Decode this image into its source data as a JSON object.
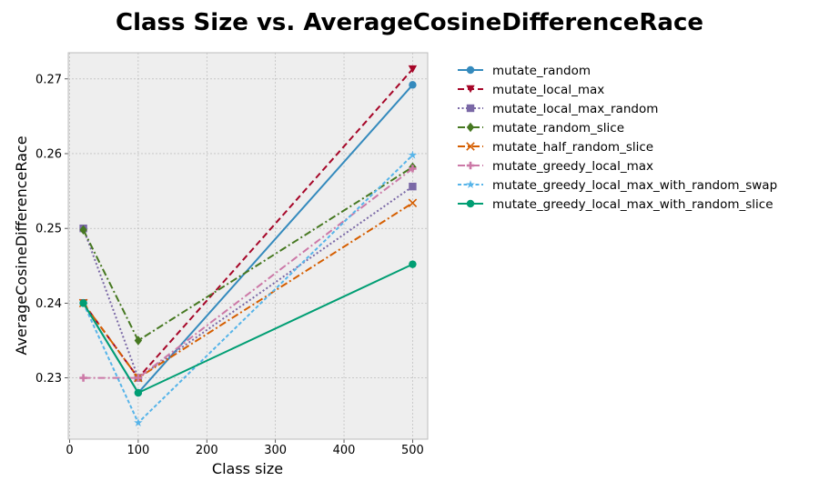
{
  "chart_data": {
    "type": "line",
    "title": "Class Size vs. AverageCosineDifferenceRace",
    "xlabel": "Class size",
    "ylabel": "AverageCosineDifferenceRace",
    "x": [
      20,
      100,
      500
    ],
    "xlim": [
      -2,
      522
    ],
    "ylim": [
      0.2218,
      0.2735
    ],
    "xticks": [
      "0",
      "100",
      "200",
      "300",
      "400",
      "500"
    ],
    "xtick_values": [
      0,
      100,
      200,
      300,
      400,
      500
    ],
    "yticks": [
      "0.23",
      "0.24",
      "0.25",
      "0.26",
      "0.27"
    ],
    "ytick_values": [
      0.23,
      0.24,
      0.25,
      0.26,
      0.27
    ],
    "grid": true,
    "legend_position": "outside-right",
    "series": [
      {
        "name": "mutate_random",
        "values": [
          0.24,
          0.228,
          0.2692
        ],
        "color": "#348ABD",
        "dash": "solid",
        "marker": "circle"
      },
      {
        "name": "mutate_local_max",
        "values": [
          0.24,
          0.23,
          0.2713
        ],
        "color": "#A60628",
        "dash": "dashed",
        "marker": "triangle-down"
      },
      {
        "name": "mutate_local_max_random",
        "values": [
          0.25,
          0.23,
          0.2556
        ],
        "color": "#7A68A6",
        "dash": "dotted",
        "marker": "square"
      },
      {
        "name": "mutate_random_slice",
        "values": [
          0.2498,
          0.235,
          0.2582
        ],
        "color": "#467821",
        "dash": "dashdot",
        "marker": "diamond"
      },
      {
        "name": "mutate_half_random_slice",
        "values": [
          0.24,
          0.23,
          0.2534
        ],
        "color": "#D55E00",
        "dash": "dashdot",
        "marker": "x"
      },
      {
        "name": "mutate_greedy_local_max",
        "values": [
          0.23,
          0.23,
          0.258
        ],
        "color": "#CC79A7",
        "dash": "dashdot",
        "marker": "plus"
      },
      {
        "name": "mutate_greedy_local_max_with_random_swap",
        "values": [
          0.24,
          0.224,
          0.2598
        ],
        "color": "#56B4E9",
        "dash": "dashed-fine",
        "marker": "star"
      },
      {
        "name": "mutate_greedy_local_max_with_random_slice",
        "values": [
          0.24,
          0.228,
          0.2452
        ],
        "color": "#009E73",
        "dash": "solid",
        "marker": "circle"
      }
    ]
  }
}
